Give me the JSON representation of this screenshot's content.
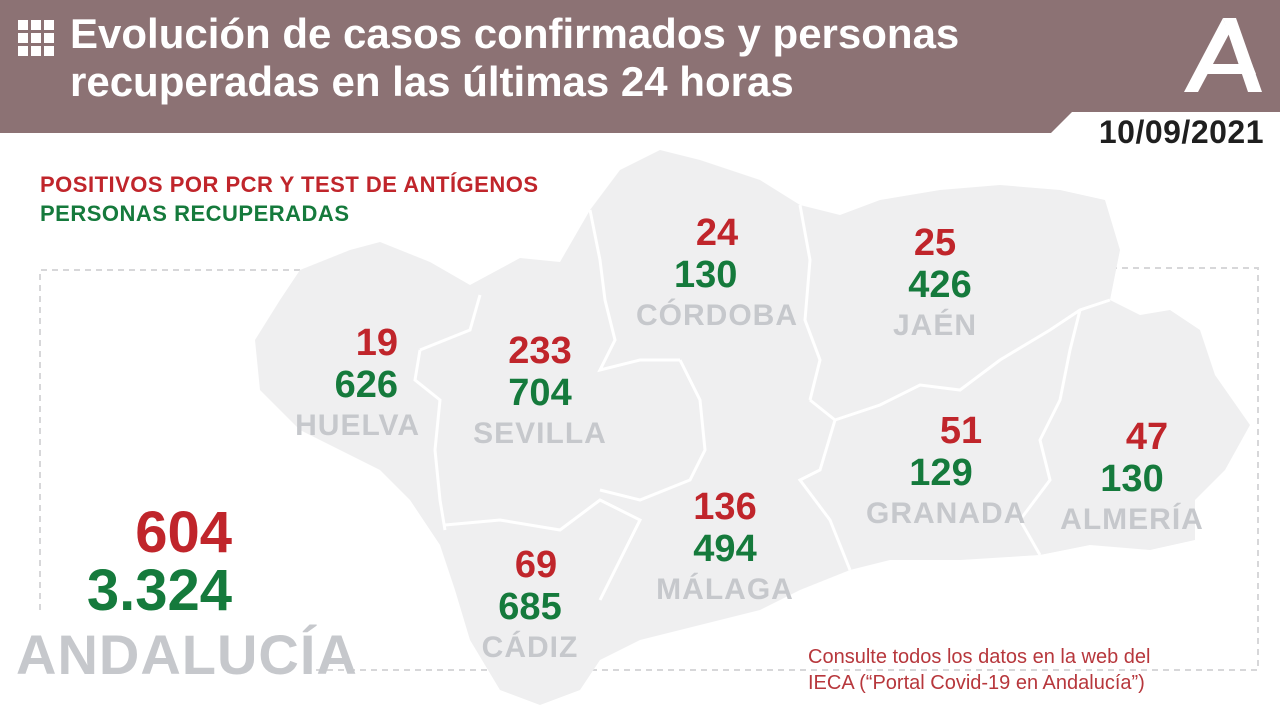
{
  "header": {
    "title_line1": "Evolución de casos confirmados y personas",
    "title_line2": "recuperadas en las últimas 24 horas",
    "date": "10/09/2021",
    "menu_icon": "grid-icon",
    "logo": "junta-de-andalucia-logo"
  },
  "legend": {
    "positives": "POSITIVOS POR PCR Y TEST DE ANTÍGENOS",
    "recovered": "PERSONAS RECUPERADAS"
  },
  "provinces": {
    "huelva": {
      "name": "HUELVA",
      "positives": "19",
      "recovered": "626"
    },
    "sevilla": {
      "name": "SEVILLA",
      "positives": "233",
      "recovered": "704"
    },
    "cordoba": {
      "name": "CÓRDOBA",
      "positives": "24",
      "recovered": "130"
    },
    "jaen": {
      "name": "JAÉN",
      "positives": "25",
      "recovered": "426"
    },
    "granada": {
      "name": "GRANADA",
      "positives": "51",
      "recovered": "129"
    },
    "almeria": {
      "name": "ALMERÍA",
      "positives": "47",
      "recovered": "130"
    },
    "malaga": {
      "name": "MÁLAGA",
      "positives": "136",
      "recovered": "494"
    },
    "cadiz": {
      "name": "CÁDIZ",
      "positives": "69",
      "recovered": "685"
    }
  },
  "total": {
    "name": "ANDALUCÍA",
    "positives": "604",
    "recovered": "3.324"
  },
  "note": {
    "line1": "Consulte todos los datos en la web del",
    "line2": "IECA (“Portal Covid-19 en Andalucía”)"
  },
  "colors": {
    "header_bg": "#8c7274",
    "positives": "#c0252b",
    "recovered": "#157a3c",
    "map_fill": "#efeff0",
    "label_grey": "#c6c8cc"
  }
}
